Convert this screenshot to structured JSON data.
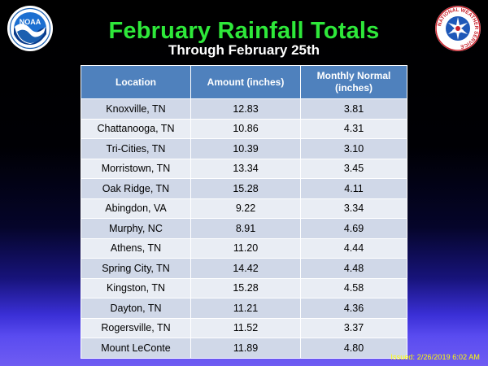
{
  "header": {
    "title": "February Rainfall Totals",
    "subtitle": "Through February 25th"
  },
  "logos": {
    "noaa": {
      "text": "NOAA",
      "icon": "noaa-logo-icon"
    },
    "nws": {
      "ring_text": "NATIONAL WEATHER SERVICE",
      "icon": "nws-logo-icon"
    }
  },
  "table": {
    "headers": [
      "Location",
      "Amount  (inches)",
      "Monthly Normal (inches)"
    ],
    "rows": [
      [
        "Knoxville, TN",
        "12.83",
        "3.81"
      ],
      [
        "Chattanooga, TN",
        "10.86",
        "4.31"
      ],
      [
        "Tri-Cities, TN",
        "10.39",
        "3.10"
      ],
      [
        "Morristown, TN",
        "13.34",
        "3.45"
      ],
      [
        "Oak Ridge, TN",
        "15.28",
        "4.11"
      ],
      [
        "Abingdon, VA",
        "9.22",
        "3.34"
      ],
      [
        "Murphy, NC",
        "8.91",
        "4.69"
      ],
      [
        "Athens, TN",
        "11.20",
        "4.44"
      ],
      [
        "Spring City, TN",
        "14.42",
        "4.48"
      ],
      [
        "Kingston, TN",
        "15.28",
        "4.58"
      ],
      [
        "Dayton, TN",
        "11.21",
        "4.36"
      ],
      [
        "Rogersville, TN",
        "11.52",
        "3.37"
      ],
      [
        "Mount LeConte",
        "11.89",
        "4.80"
      ]
    ]
  },
  "footer": {
    "issued": "Issued: 2/26/2019 6:02 AM"
  },
  "colors": {
    "title": "#2ee83a",
    "header_bg": "#4f81bd",
    "row_odd": "#d0d8e8",
    "row_even": "#e9edf4",
    "issued": "#ffff00"
  }
}
